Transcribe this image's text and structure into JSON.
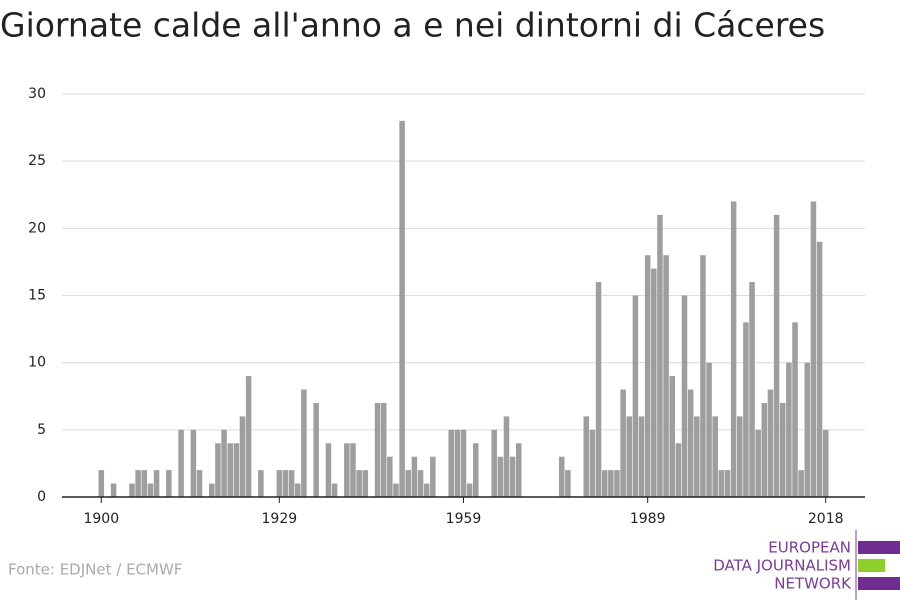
{
  "chart_data": {
    "type": "bar",
    "title": "Giornate calde all'anno a e nei dintorni di Cáceres",
    "source": "Fonte: EDJNet / ECMWF",
    "logo": [
      "EUROPEAN",
      "DATA JOURNALISM",
      "NETWORK"
    ],
    "color": "#9e9e9e",
    "x": [
      1900,
      1901,
      1902,
      1903,
      1904,
      1905,
      1906,
      1907,
      1908,
      1909,
      1910,
      1911,
      1912,
      1913,
      1914,
      1915,
      1916,
      1917,
      1918,
      1919,
      1920,
      1921,
      1922,
      1923,
      1924,
      1925,
      1926,
      1927,
      1928,
      1929,
      1930,
      1931,
      1932,
      1933,
      1934,
      1935,
      1936,
      1937,
      1938,
      1939,
      1940,
      1941,
      1942,
      1943,
      1944,
      1945,
      1946,
      1947,
      1948,
      1949,
      1950,
      1951,
      1952,
      1953,
      1954,
      1955,
      1956,
      1957,
      1958,
      1959,
      1960,
      1961,
      1962,
      1963,
      1964,
      1965,
      1966,
      1967,
      1968,
      1969,
      1970,
      1971,
      1972,
      1973,
      1974,
      1975,
      1976,
      1977,
      1978,
      1979,
      1980,
      1981,
      1982,
      1983,
      1984,
      1985,
      1986,
      1987,
      1988,
      1989,
      1990,
      1991,
      1992,
      1993,
      1994,
      1995,
      1996,
      1997,
      1998,
      1999,
      2000,
      2001,
      2002,
      2003,
      2004,
      2005,
      2006,
      2007,
      2008,
      2009,
      2010,
      2011,
      2012,
      2013,
      2014,
      2015,
      2016,
      2017,
      2018
    ],
    "values": [
      2,
      0,
      1,
      0,
      0,
      1,
      2,
      2,
      1,
      2,
      0,
      2,
      0,
      5,
      0,
      5,
      2,
      0,
      1,
      4,
      5,
      4,
      4,
      6,
      9,
      0,
      2,
      0,
      0,
      2,
      2,
      2,
      1,
      8,
      0,
      7,
      0,
      4,
      1,
      0,
      4,
      4,
      2,
      2,
      0,
      7,
      7,
      3,
      1,
      28,
      2,
      3,
      2,
      1,
      3,
      0,
      0,
      5,
      5,
      5,
      1,
      4,
      0,
      0,
      5,
      3,
      6,
      3,
      4,
      0,
      0,
      0,
      0,
      0,
      0,
      3,
      2,
      0,
      0,
      6,
      5,
      16,
      2,
      2,
      2,
      8,
      6,
      15,
      6,
      18,
      17,
      21,
      18,
      9,
      4,
      15,
      8,
      6,
      18,
      10,
      6,
      2,
      2,
      22,
      6,
      13,
      16,
      5,
      7,
      8,
      21,
      7,
      10,
      13,
      2,
      10,
      22,
      19,
      5
    ],
    "xlim": [
      1893.6,
      2024.4
    ],
    "xticks": [
      1900,
      1929,
      1959,
      1989,
      2018
    ],
    "ylim": [
      0,
      30
    ],
    "yticks": [
      0,
      5,
      10,
      15,
      20,
      25,
      30
    ],
    "grid": true
  }
}
